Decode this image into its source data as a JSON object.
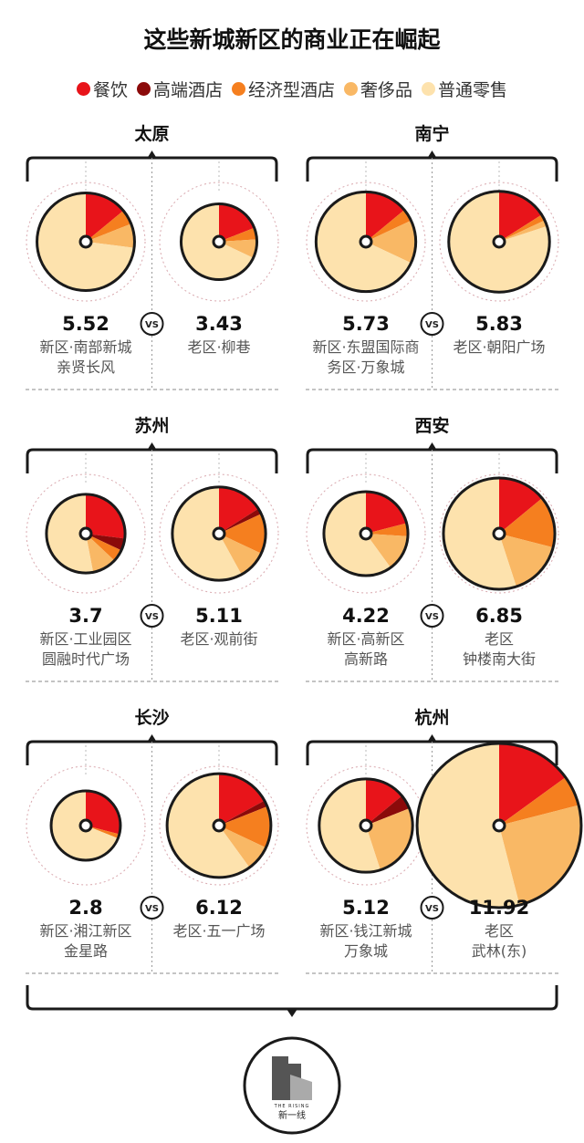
{
  "title": "这些新城新区的商业正在崛起",
  "legend": [
    {
      "label": "餐饮",
      "color": "#e8141a"
    },
    {
      "label": "高端酒店",
      "color": "#8b0a0a"
    },
    {
      "label": "经济型酒店",
      "color": "#f57f1f"
    },
    {
      "label": "奢侈品",
      "color": "#f9b865"
    },
    {
      "label": "普通零售",
      "color": "#fde2ad"
    }
  ],
  "vs_label": "VS",
  "logo": {
    "sub": "THE RISING",
    "name": "新一线"
  },
  "chart_data": {
    "type": "pie",
    "size_metric_note": "",
    "categories": [
      "餐饮",
      "高端酒店",
      "经济型酒店",
      "奢侈品",
      "普通零售"
    ],
    "cities": [
      {
        "name": "太原",
        "pair": [
          {
            "value": "5.52",
            "label": [
              "新区·南部新城",
              "亲贤长风"
            ],
            "shares": [
              0.14,
              0.0,
              0.05,
              0.08,
              0.73
            ]
          },
          {
            "value": "3.43",
            "label": [
              "老区·柳巷"
            ],
            "shares": [
              0.19,
              0.0,
              0.05,
              0.08,
              0.68
            ]
          }
        ]
      },
      {
        "name": "南宁",
        "pair": [
          {
            "value": "5.73",
            "label": [
              "新区·东盟国际商",
              "务区·万象城"
            ],
            "shares": [
              0.14,
              0.0,
              0.04,
              0.14,
              0.68
            ]
          },
          {
            "value": "5.83",
            "label": [
              "老区·朝阳广场"
            ],
            "shares": [
              0.16,
              0.0,
              0.02,
              0.02,
              0.8
            ]
          }
        ]
      },
      {
        "name": "苏州",
        "pair": [
          {
            "value": "3.7",
            "label": [
              "新区·工业园区",
              "圆融时代广场"
            ],
            "shares": [
              0.27,
              0.05,
              0.05,
              0.1,
              0.53
            ]
          },
          {
            "value": "5.11",
            "label": [
              "老区·观前街"
            ],
            "shares": [
              0.16,
              0.02,
              0.14,
              0.1,
              0.58
            ]
          }
        ]
      },
      {
        "name": "西安",
        "pair": [
          {
            "value": "4.22",
            "label": [
              "新区·高新区",
              "高新路"
            ],
            "shares": [
              0.21,
              0.0,
              0.05,
              0.14,
              0.6
            ]
          },
          {
            "value": "6.85",
            "label": [
              "老区",
              "钟楼南大街"
            ],
            "shares": [
              0.14,
              0.0,
              0.15,
              0.16,
              0.55
            ]
          }
        ]
      },
      {
        "name": "长沙",
        "pair": [
          {
            "value": "2.8",
            "label": [
              "新区·湘江新区",
              "金星路"
            ],
            "shares": [
              0.29,
              0.0,
              0.02,
              0.0,
              0.69
            ]
          },
          {
            "value": "6.12",
            "label": [
              "老区·五一广场"
            ],
            "shares": [
              0.17,
              0.02,
              0.13,
              0.08,
              0.6
            ]
          }
        ]
      },
      {
        "name": "杭州",
        "pair": [
          {
            "value": "5.12",
            "label": [
              "新区·钱江新城",
              "万象城"
            ],
            "shares": [
              0.14,
              0.05,
              0.0,
              0.26,
              0.55
            ]
          },
          {
            "value": "11.92",
            "label": [
              "老区",
              "武林(东)"
            ],
            "shares": [
              0.15,
              0.0,
              0.06,
              0.25,
              0.54
            ]
          }
        ]
      }
    ]
  }
}
